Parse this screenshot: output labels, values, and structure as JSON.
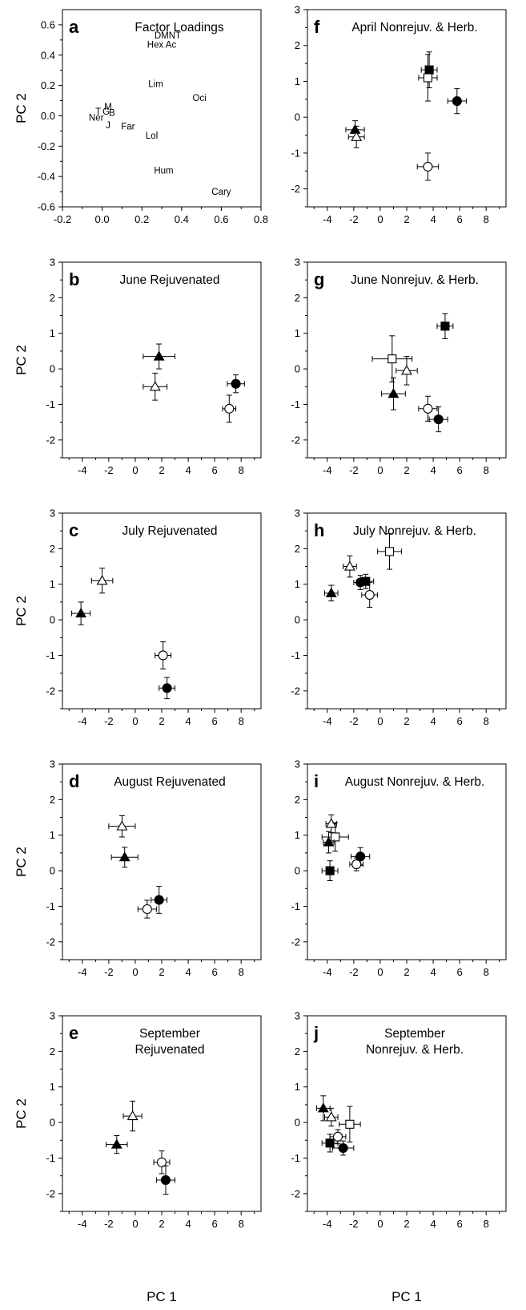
{
  "figure": {
    "xlabel_left": "PC 1",
    "xlabel_right": "PC 1",
    "ylabel": "PC 2"
  },
  "chart_data": [
    {
      "id": "a",
      "letter": "a",
      "title": [
        "Factor Loadings"
      ],
      "type": "scatter",
      "xlim": [
        -0.2,
        0.8
      ],
      "ylim": [
        -0.6,
        0.7
      ],
      "xticks": [
        -0.2,
        0.0,
        0.2,
        0.4,
        0.6,
        0.8
      ],
      "xtick_labels": [
        "-0.2",
        "0.0",
        "0.2",
        "0.4",
        "0.6",
        "0.8"
      ],
      "yticks": [
        -0.6,
        -0.4,
        -0.2,
        0.0,
        0.2,
        0.4,
        0.6
      ],
      "ytick_labels": [
        "-0.6",
        "-0.4",
        "-0.2",
        "0.0",
        "0.2",
        "0.4",
        "0.6"
      ],
      "show_ylabel": true,
      "labels": [
        {
          "text": "DMNT",
          "x": 0.33,
          "y": 0.53
        },
        {
          "text": "Hex Ac",
          "x": 0.3,
          "y": 0.47
        },
        {
          "text": "Lim",
          "x": 0.27,
          "y": 0.21
        },
        {
          "text": "Oci",
          "x": 0.49,
          "y": 0.12
        },
        {
          "text": "M",
          "x": 0.03,
          "y": 0.06
        },
        {
          "text": "T",
          "x": -0.02,
          "y": 0.03
        },
        {
          "text": "G",
          "x": 0.02,
          "y": 0.03
        },
        {
          "text": "B",
          "x": 0.05,
          "y": 0.02
        },
        {
          "text": "Ner",
          "x": -0.03,
          "y": -0.01
        },
        {
          "text": "J",
          "x": 0.03,
          "y": -0.06
        },
        {
          "text": "Far",
          "x": 0.13,
          "y": -0.07
        },
        {
          "text": "Lol",
          "x": 0.25,
          "y": -0.13
        },
        {
          "text": "Hum",
          "x": 0.31,
          "y": -0.36
        },
        {
          "text": "Cary",
          "x": 0.6,
          "y": -0.5
        }
      ]
    },
    {
      "id": "b",
      "letter": "b",
      "title": [
        "June Rejuvenated"
      ],
      "type": "scatter",
      "xlim": [
        -5.5,
        9.5
      ],
      "ylim": [
        -2.5,
        3
      ],
      "show_ylabel": true,
      "xticks": [
        -4,
        -2,
        0,
        2,
        4,
        6,
        8
      ],
      "xtick_labels": [
        "-4",
        "-2",
        "0",
        "2",
        "4",
        "6",
        "8"
      ],
      "yticks": [
        -2,
        -1,
        0,
        1,
        2,
        3
      ],
      "ytick_labels": [
        "-2",
        "-1",
        "0",
        "1",
        "2",
        "3"
      ],
      "points": [
        {
          "marker": "triangle-filled",
          "x": 1.8,
          "y": 0.35,
          "xerr": 1.2,
          "yerr": 0.35
        },
        {
          "marker": "triangle-open",
          "x": 1.5,
          "y": -0.5,
          "xerr": 0.9,
          "yerr": 0.38
        },
        {
          "marker": "circle-filled",
          "x": 7.6,
          "y": -0.42,
          "xerr": 0.65,
          "yerr": 0.25
        },
        {
          "marker": "circle-open",
          "x": 7.1,
          "y": -1.12,
          "xerr": 0.5,
          "yerr": 0.38
        }
      ]
    },
    {
      "id": "c",
      "letter": "c",
      "title": [
        "July Rejuvenated"
      ],
      "type": "scatter",
      "xlim": [
        -5.5,
        9.5
      ],
      "ylim": [
        -2.5,
        3
      ],
      "show_ylabel": true,
      "xticks": [
        -4,
        -2,
        0,
        2,
        4,
        6,
        8
      ],
      "xtick_labels": [
        "-4",
        "-2",
        "0",
        "2",
        "4",
        "6",
        "8"
      ],
      "yticks": [
        -2,
        -1,
        0,
        1,
        2,
        3
      ],
      "ytick_labels": [
        "-2",
        "-1",
        "0",
        "1",
        "2",
        "3"
      ],
      "points": [
        {
          "marker": "triangle-filled",
          "x": -4.1,
          "y": 0.18,
          "xerr": 0.7,
          "yerr": 0.32
        },
        {
          "marker": "triangle-open",
          "x": -2.5,
          "y": 1.1,
          "xerr": 0.8,
          "yerr": 0.35
        },
        {
          "marker": "circle-open",
          "x": 2.1,
          "y": -1.0,
          "xerr": 0.6,
          "yerr": 0.38
        },
        {
          "marker": "circle-filled",
          "x": 2.4,
          "y": -1.92,
          "xerr": 0.6,
          "yerr": 0.3
        }
      ]
    },
    {
      "id": "d",
      "letter": "d",
      "title": [
        "August Rejuvenated"
      ],
      "type": "scatter",
      "xlim": [
        -5.5,
        9.5
      ],
      "ylim": [
        -2.5,
        3
      ],
      "show_ylabel": true,
      "xticks": [
        -4,
        -2,
        0,
        2,
        4,
        6,
        8
      ],
      "xtick_labels": [
        "-4",
        "-2",
        "0",
        "2",
        "4",
        "6",
        "8"
      ],
      "yticks": [
        -2,
        -1,
        0,
        1,
        2,
        3
      ],
      "ytick_labels": [
        "-2",
        "-1",
        "0",
        "1",
        "2",
        "3"
      ],
      "points": [
        {
          "marker": "triangle-open",
          "x": -1.0,
          "y": 1.25,
          "xerr": 1.0,
          "yerr": 0.3
        },
        {
          "marker": "triangle-filled",
          "x": -0.8,
          "y": 0.38,
          "xerr": 1.0,
          "yerr": 0.28
        },
        {
          "marker": "circle-filled",
          "x": 1.8,
          "y": -0.82,
          "xerr": 0.6,
          "yerr": 0.38
        },
        {
          "marker": "circle-open",
          "x": 0.9,
          "y": -1.08,
          "xerr": 0.7,
          "yerr": 0.25
        }
      ]
    },
    {
      "id": "e",
      "letter": "e",
      "title": [
        "September",
        "Rejuvenated"
      ],
      "type": "scatter",
      "xlim": [
        -5.5,
        9.5
      ],
      "ylim": [
        -2.5,
        3
      ],
      "show_ylabel": true,
      "xticks": [
        -4,
        -2,
        0,
        2,
        4,
        6,
        8
      ],
      "xtick_labels": [
        "-4",
        "-2",
        "0",
        "2",
        "4",
        "6",
        "8"
      ],
      "yticks": [
        -2,
        -1,
        0,
        1,
        2,
        3
      ],
      "ytick_labels": [
        "-2",
        "-1",
        "0",
        "1",
        "2",
        "3"
      ],
      "points": [
        {
          "marker": "triangle-open",
          "x": -0.2,
          "y": 0.18,
          "xerr": 0.7,
          "yerr": 0.42
        },
        {
          "marker": "triangle-filled",
          "x": -1.4,
          "y": -0.62,
          "xerr": 0.8,
          "yerr": 0.25
        },
        {
          "marker": "circle-open",
          "x": 2.0,
          "y": -1.12,
          "xerr": 0.6,
          "yerr": 0.32
        },
        {
          "marker": "circle-filled",
          "x": 2.3,
          "y": -1.62,
          "xerr": 0.7,
          "yerr": 0.4
        }
      ]
    },
    {
      "id": "f",
      "letter": "f",
      "title": [
        "April Nonrejuv. & Herb."
      ],
      "type": "scatter",
      "xlim": [
        -5.5,
        9.5
      ],
      "ylim": [
        -2.5,
        3
      ],
      "show_ylabel": false,
      "xticks": [
        -4,
        -2,
        0,
        2,
        4,
        6,
        8
      ],
      "xtick_labels": [
        "-4",
        "-2",
        "0",
        "2",
        "4",
        "6",
        "8"
      ],
      "yticks": [
        -2,
        -1,
        0,
        1,
        2,
        3
      ],
      "ytick_labels": [
        "-2",
        "-1",
        "0",
        "1",
        "2",
        "3"
      ],
      "points": [
        {
          "marker": "square-filled",
          "x": 3.7,
          "y": 1.32,
          "xerr": 0.6,
          "yerr": 0.5
        },
        {
          "marker": "square-open",
          "x": 3.6,
          "y": 1.1,
          "xerr": 0.7,
          "yerr": 0.65
        },
        {
          "marker": "circle-filled",
          "x": 5.8,
          "y": 0.45,
          "xerr": 0.7,
          "yerr": 0.35
        },
        {
          "marker": "triangle-filled",
          "x": -1.9,
          "y": -0.35,
          "xerr": 0.7,
          "yerr": 0.25
        },
        {
          "marker": "triangle-open",
          "x": -1.8,
          "y": -0.55,
          "xerr": 0.6,
          "yerr": 0.3
        },
        {
          "marker": "circle-open",
          "x": 3.6,
          "y": -1.38,
          "xerr": 0.8,
          "yerr": 0.38
        }
      ]
    },
    {
      "id": "g",
      "letter": "g",
      "title": [
        "June Nonrejuv. & Herb."
      ],
      "type": "scatter",
      "xlim": [
        -5.5,
        9.5
      ],
      "ylim": [
        -2.5,
        3
      ],
      "show_ylabel": false,
      "xticks": [
        -4,
        -2,
        0,
        2,
        4,
        6,
        8
      ],
      "xtick_labels": [
        "-4",
        "-2",
        "0",
        "2",
        "4",
        "6",
        "8"
      ],
      "yticks": [
        -2,
        -1,
        0,
        1,
        2,
        3
      ],
      "ytick_labels": [
        "-2",
        "-1",
        "0",
        "1",
        "2",
        "3"
      ],
      "points": [
        {
          "marker": "square-filled",
          "x": 4.9,
          "y": 1.2,
          "xerr": 0.6,
          "yerr": 0.35
        },
        {
          "marker": "square-open",
          "x": 0.9,
          "y": 0.28,
          "xerr": 1.5,
          "yerr": 0.65
        },
        {
          "marker": "triangle-open",
          "x": 2.0,
          "y": -0.05,
          "xerr": 0.8,
          "yerr": 0.4
        },
        {
          "marker": "triangle-filled",
          "x": 1.0,
          "y": -0.7,
          "xerr": 0.9,
          "yerr": 0.45
        },
        {
          "marker": "circle-open",
          "x": 3.6,
          "y": -1.12,
          "xerr": 0.7,
          "yerr": 0.35
        },
        {
          "marker": "circle-filled",
          "x": 4.4,
          "y": -1.42,
          "xerr": 0.7,
          "yerr": 0.35
        }
      ]
    },
    {
      "id": "h",
      "letter": "h",
      "title": [
        "July Nonrejuv. & Herb."
      ],
      "type": "scatter",
      "xlim": [
        -5.5,
        9.5
      ],
      "ylim": [
        -2.5,
        3
      ],
      "show_ylabel": false,
      "xticks": [
        -4,
        -2,
        0,
        2,
        4,
        6,
        8
      ],
      "xtick_labels": [
        "-4",
        "-2",
        "0",
        "2",
        "4",
        "6",
        "8"
      ],
      "yticks": [
        -2,
        -1,
        0,
        1,
        2,
        3
      ],
      "ytick_labels": [
        "-2",
        "-1",
        "0",
        "1",
        "2",
        "3"
      ],
      "points": [
        {
          "marker": "square-open",
          "x": 0.7,
          "y": 1.92,
          "xerr": 0.9,
          "yerr": 0.5
        },
        {
          "marker": "triangle-open",
          "x": -2.3,
          "y": 1.5,
          "xerr": 0.5,
          "yerr": 0.3
        },
        {
          "marker": "square-filled",
          "x": -1.1,
          "y": 1.08,
          "xerr": 0.6,
          "yerr": 0.2
        },
        {
          "marker": "circle-filled",
          "x": -1.5,
          "y": 1.05,
          "xerr": 0.5,
          "yerr": 0.2
        },
        {
          "marker": "circle-open",
          "x": -0.8,
          "y": 0.7,
          "xerr": 0.6,
          "yerr": 0.35
        },
        {
          "marker": "triangle-filled",
          "x": -3.7,
          "y": 0.75,
          "xerr": 0.5,
          "yerr": 0.22
        }
      ]
    },
    {
      "id": "i",
      "letter": "i",
      "title": [
        "August Nonrejuv. & Herb."
      ],
      "type": "scatter",
      "xlim": [
        -5.5,
        9.5
      ],
      "ylim": [
        -2.5,
        3
      ],
      "show_ylabel": false,
      "xticks": [
        -4,
        -2,
        0,
        2,
        4,
        6,
        8
      ],
      "xtick_labels": [
        "-4",
        "-2",
        "0",
        "2",
        "4",
        "6",
        "8"
      ],
      "yticks": [
        -2,
        -1,
        0,
        1,
        2,
        3
      ],
      "ytick_labels": [
        "-2",
        "-1",
        "0",
        "1",
        "2",
        "3"
      ],
      "points": [
        {
          "marker": "triangle-open",
          "x": -3.7,
          "y": 1.32,
          "xerr": 0.4,
          "yerr": 0.25
        },
        {
          "marker": "square-open",
          "x": -3.4,
          "y": 0.95,
          "xerr": 1.0,
          "yerr": 0.4
        },
        {
          "marker": "triangle-filled",
          "x": -3.9,
          "y": 0.8,
          "xerr": 0.4,
          "yerr": 0.3
        },
        {
          "marker": "square-filled",
          "x": -3.8,
          "y": 0.0,
          "xerr": 0.6,
          "yerr": 0.28
        },
        {
          "marker": "circle-filled",
          "x": -1.5,
          "y": 0.4,
          "xerr": 0.7,
          "yerr": 0.25
        },
        {
          "marker": "circle-open",
          "x": -1.8,
          "y": 0.18,
          "xerr": 0.5,
          "yerr": 0.18
        }
      ]
    },
    {
      "id": "j",
      "letter": "j",
      "title": [
        "September",
        "Nonrejuv. & Herb."
      ],
      "type": "scatter",
      "xlim": [
        -5.5,
        9.5
      ],
      "ylim": [
        -2.5,
        3
      ],
      "show_ylabel": false,
      "xticks": [
        -4,
        -2,
        0,
        2,
        4,
        6,
        8
      ],
      "xtick_labels": [
        "-4",
        "-2",
        "0",
        "2",
        "4",
        "6",
        "8"
      ],
      "yticks": [
        -2,
        -1,
        0,
        1,
        2,
        3
      ],
      "ytick_labels": [
        "-2",
        "-1",
        "0",
        "1",
        "2",
        "3"
      ],
      "points": [
        {
          "marker": "triangle-filled",
          "x": -4.3,
          "y": 0.4,
          "xerr": 0.5,
          "yerr": 0.35
        },
        {
          "marker": "triangle-open",
          "x": -3.7,
          "y": 0.15,
          "xerr": 0.5,
          "yerr": 0.25
        },
        {
          "marker": "square-open",
          "x": -2.3,
          "y": -0.05,
          "xerr": 0.8,
          "yerr": 0.5
        },
        {
          "marker": "circle-open",
          "x": -3.2,
          "y": -0.4,
          "xerr": 0.6,
          "yerr": 0.2
        },
        {
          "marker": "square-filled",
          "x": -3.8,
          "y": -0.58,
          "xerr": 0.6,
          "yerr": 0.25
        },
        {
          "marker": "circle-filled",
          "x": -2.8,
          "y": -0.72,
          "xerr": 0.8,
          "yerr": 0.2
        }
      ]
    }
  ]
}
